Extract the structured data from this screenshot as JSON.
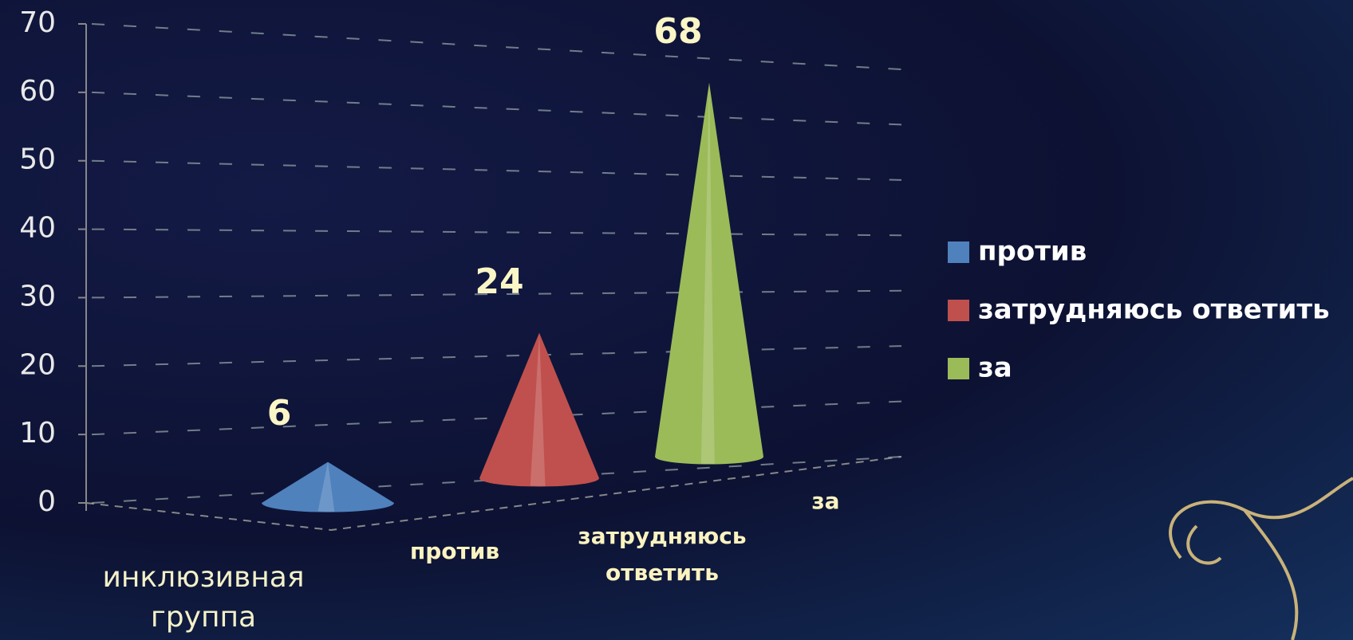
{
  "chart_data": {
    "type": "cone3d",
    "categories": [
      "инклюзивная группа"
    ],
    "series": [
      {
        "name": "против",
        "color": "#4f81bd",
        "values": [
          6
        ]
      },
      {
        "name": "затрудняюсь ответить",
        "color": "#c0504d",
        "values": [
          24
        ]
      },
      {
        "name": "за",
        "color": "#9bbb59",
        "values": [
          68
        ]
      }
    ],
    "ylim": [
      0,
      70
    ],
    "yticks": [
      0,
      10,
      20,
      30,
      40,
      50,
      60,
      70
    ],
    "grid": true,
    "legend": "right",
    "data_labels": true
  }
}
